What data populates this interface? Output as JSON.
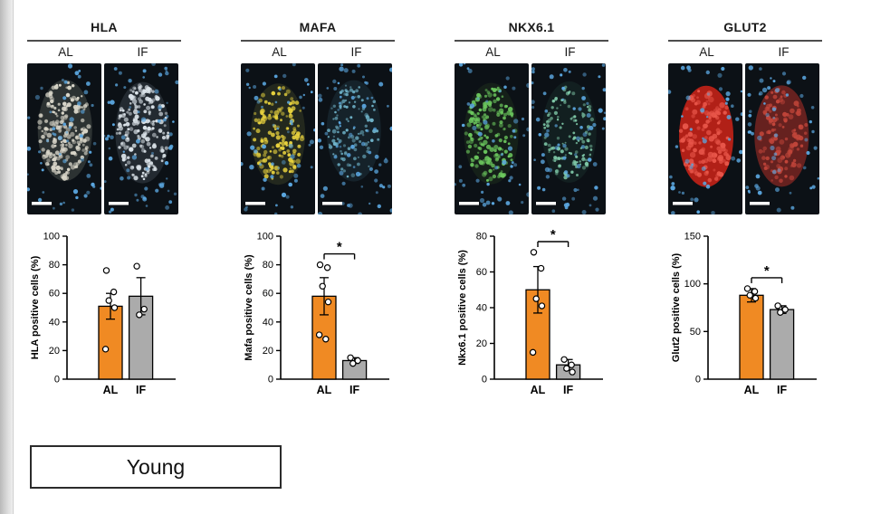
{
  "figure": {
    "group_label": "Young",
    "conditions": [
      "AL",
      "IF"
    ]
  },
  "colors": {
    "bar_al": "#F08A23",
    "bar_if": "#ABABAB",
    "axis": "#000000",
    "point_fill": "#FFFFFF",
    "point_stroke": "#000000",
    "scalebar": "#FFFFFF"
  },
  "panels": [
    {
      "marker": "HLA",
      "micro_al": {
        "bg": "#0c1116",
        "base_color": "#6b6f66",
        "base_opacity": 0.35,
        "dot_color": "#d9d6c9",
        "dot_count": 200,
        "dot_r": 2.0,
        "nuclei_color": "#5ba7e0",
        "nuclei_count": 55
      },
      "micro_if": {
        "bg": "#0c1116",
        "base_color": "#5a6770",
        "base_opacity": 0.3,
        "dot_color": "#dce4ea",
        "dot_count": 190,
        "dot_r": 2.0,
        "nuclei_color": "#5ba7e0",
        "nuclei_count": 65
      }
    },
    {
      "marker": "MAFA",
      "micro_al": {
        "bg": "#0c1116",
        "base_color": "#3a4026",
        "base_opacity": 0.5,
        "dot_color": "#e8d23e",
        "dot_count": 150,
        "dot_r": 2.1,
        "nuclei_color": "#5ba7e0",
        "nuclei_count": 55
      },
      "micro_if": {
        "bg": "#0c1116",
        "base_color": "#27414f",
        "base_opacity": 0.35,
        "dot_color": "#6fb3c9",
        "dot_count": 110,
        "dot_r": 1.7,
        "nuclei_color": "#5ba7e0",
        "nuclei_count": 70
      }
    },
    {
      "marker": "NKX6.1",
      "micro_al": {
        "bg": "#0c1116",
        "base_color": "#24361f",
        "base_opacity": 0.4,
        "dot_color": "#6cc95e",
        "dot_count": 170,
        "dot_r": 2.0,
        "nuclei_color": "#5ba7e0",
        "nuclei_count": 50
      },
      "micro_if": {
        "bg": "#0c1116",
        "base_color": "#1f3a33",
        "base_opacity": 0.35,
        "dot_color": "#7fc9a8",
        "dot_count": 120,
        "dot_r": 1.6,
        "nuclei_color": "#5ba7e0",
        "nuclei_count": 70
      }
    },
    {
      "marker": "GLUT2",
      "micro_al": {
        "bg": "#0c1116",
        "base_color": "#cf2317",
        "base_opacity": 0.85,
        "dot_color": "#e8564a",
        "dot_count": 120,
        "dot_r": 2.4,
        "nuclei_color": "#5ba7e0",
        "nuclei_count": 45
      },
      "micro_if": {
        "bg": "#0c1116",
        "base_color": "#b03028",
        "base_opacity": 0.55,
        "dot_color": "#c2453a",
        "dot_count": 110,
        "dot_r": 2.2,
        "nuclei_color": "#5ba7e0",
        "nuclei_count": 55
      }
    }
  ],
  "chart_data": [
    {
      "type": "bar",
      "title": "",
      "ylabel": "HLA positive cells (%)",
      "categories": [
        "AL",
        "IF"
      ],
      "values": [
        51,
        58
      ],
      "errors": [
        9,
        13
      ],
      "points": [
        [
          76,
          61,
          55,
          50,
          21
        ],
        [
          79,
          49,
          45
        ]
      ],
      "ylim": [
        0,
        100
      ],
      "yticks": [
        0,
        20,
        40,
        60,
        80,
        100
      ],
      "significant": false,
      "sig_label": "*"
    },
    {
      "type": "bar",
      "title": "",
      "ylabel": "Mafa positive cells (%)",
      "categories": [
        "AL",
        "IF"
      ],
      "values": [
        58,
        13
      ],
      "errors": [
        13,
        2
      ],
      "points": [
        [
          80,
          78,
          65,
          54,
          31,
          28
        ],
        [
          15,
          13,
          11
        ]
      ],
      "ylim": [
        0,
        100
      ],
      "yticks": [
        0,
        20,
        40,
        60,
        80,
        100
      ],
      "significant": true,
      "sig_label": "*"
    },
    {
      "type": "bar",
      "title": "",
      "ylabel": "Nkx6.1 positive cells (%)",
      "categories": [
        "AL",
        "IF"
      ],
      "values": [
        50,
        8
      ],
      "errors": [
        13,
        3
      ],
      "points": [
        [
          71,
          62,
          45,
          41,
          15
        ],
        [
          11,
          8,
          6,
          4
        ]
      ],
      "ylim": [
        0,
        80
      ],
      "yticks": [
        0,
        20,
        40,
        60,
        80
      ],
      "significant": true,
      "sig_label": "*"
    },
    {
      "type": "bar",
      "title": "",
      "ylabel": "Glut2 positive cells (%)",
      "categories": [
        "AL",
        "IF"
      ],
      "values": [
        88,
        73
      ],
      "errors": [
        7,
        4
      ],
      "points": [
        [
          95,
          92,
          88,
          85
        ],
        [
          77,
          73,
          70
        ]
      ],
      "ylim": [
        0,
        150
      ],
      "yticks": [
        0,
        50,
        100,
        150
      ],
      "significant": true,
      "sig_label": "*"
    }
  ]
}
